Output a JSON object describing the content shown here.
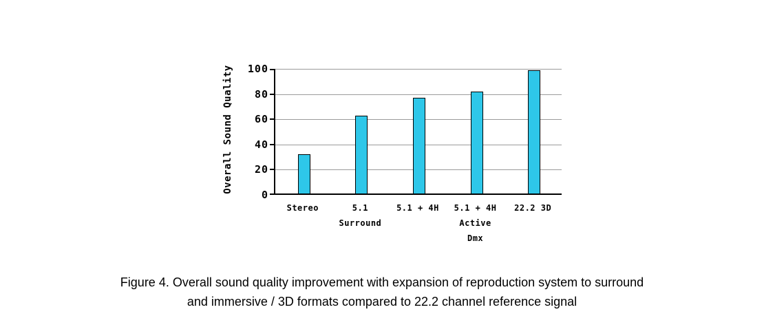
{
  "chart_data": {
    "type": "bar",
    "title": "",
    "xlabel": "",
    "ylabel": "Overall Sound Quality",
    "ylim": [
      0,
      100
    ],
    "yticks": [
      0,
      20,
      40,
      60,
      80,
      100
    ],
    "grid": true,
    "legend_position": "none",
    "categories": [
      [
        "Stereo"
      ],
      [
        "5.1",
        "Surround"
      ],
      [
        "5.1 + 4H"
      ],
      [
        "5.1 + 4H",
        "Active",
        "Dmx"
      ],
      [
        "22.2 3D"
      ]
    ],
    "category_names": [
      "Stereo",
      "5.1 Surround",
      "5.1 + 4H",
      "5.1 + 4H Active Dmx",
      "22.2 3D"
    ],
    "values": [
      31,
      62,
      76,
      81,
      98
    ],
    "bar_color": "#2EC7E9",
    "bar_border_color": "#000000",
    "gridline_color": "#9a9a9a"
  },
  "caption": {
    "line1": "Figure 4. Overall sound quality improvement with expansion of reproduction system to surround",
    "line2": "and immersive / 3D formats compared to 22.2 channel reference signal"
  }
}
